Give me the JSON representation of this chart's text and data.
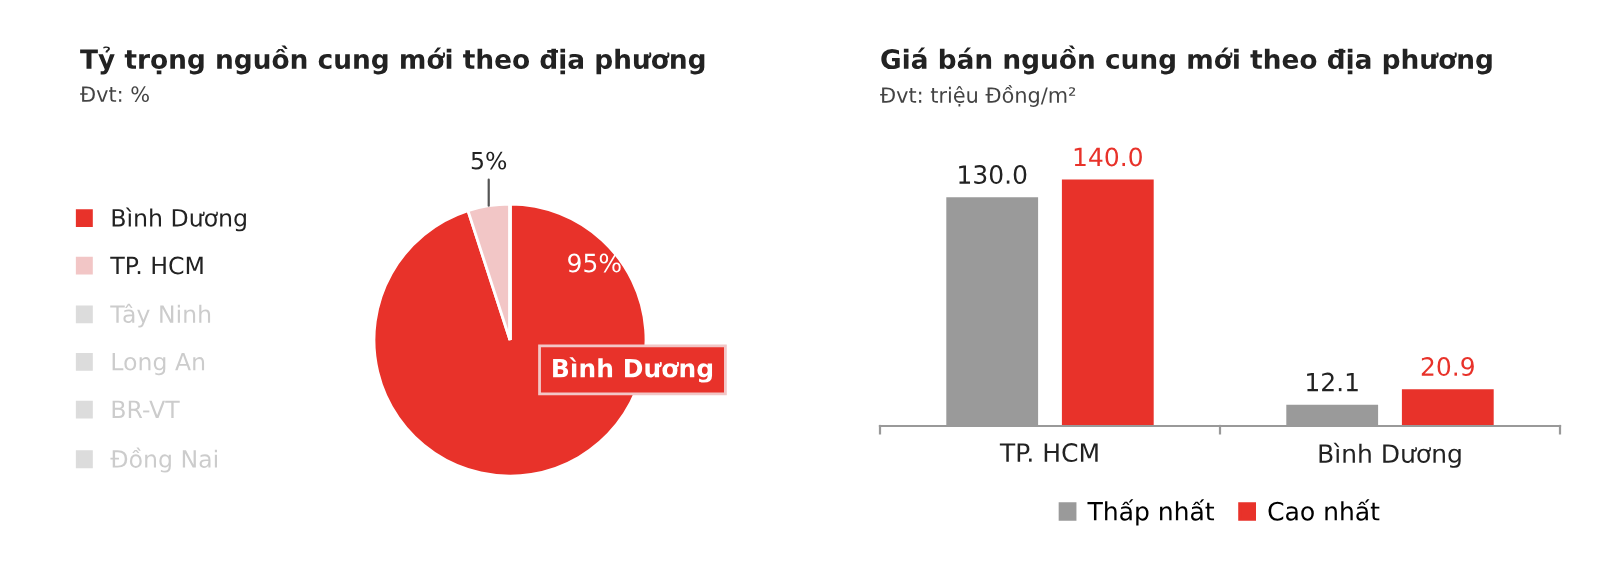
{
  "chart_data": [
    {
      "type": "pie",
      "title": "Tỷ trọng nguồn cung mới theo địa phương",
      "subtitle": "Đvt: %",
      "categories": [
        "Bình Dương",
        "TP. HCM",
        "Tây Ninh",
        "Long An",
        "BR-VT",
        "Đồng Nai"
      ],
      "values": [
        95,
        5,
        0,
        0,
        0,
        0
      ],
      "colors": [
        "#e8322a",
        "#f2c6c6",
        "#dcdcdc",
        "#dcdcdc",
        "#dcdcdc",
        "#dcdcdc"
      ],
      "value_labels": [
        "95%",
        "5%",
        null,
        null,
        null,
        null
      ],
      "annotations": [
        "Bình Dương"
      ],
      "legend": "left"
    },
    {
      "type": "bar",
      "title": "Giá bán nguồn cung mới theo địa phương",
      "subtitle": "Đvt: triệu Đồng/m²",
      "categories": [
        "TP. HCM",
        "Bình Dương"
      ],
      "series": [
        {
          "name": "Thấp nhất",
          "color": "#9a9a9a",
          "values": [
            130.0,
            12.1
          ],
          "value_labels": [
            "130.0",
            "12.1"
          ]
        },
        {
          "name": "Cao nhất",
          "color": "#e8322a",
          "values": [
            140.0,
            20.9
          ],
          "value_labels": [
            "140.0",
            "20.9"
          ]
        }
      ],
      "legend": "bottom"
    }
  ]
}
